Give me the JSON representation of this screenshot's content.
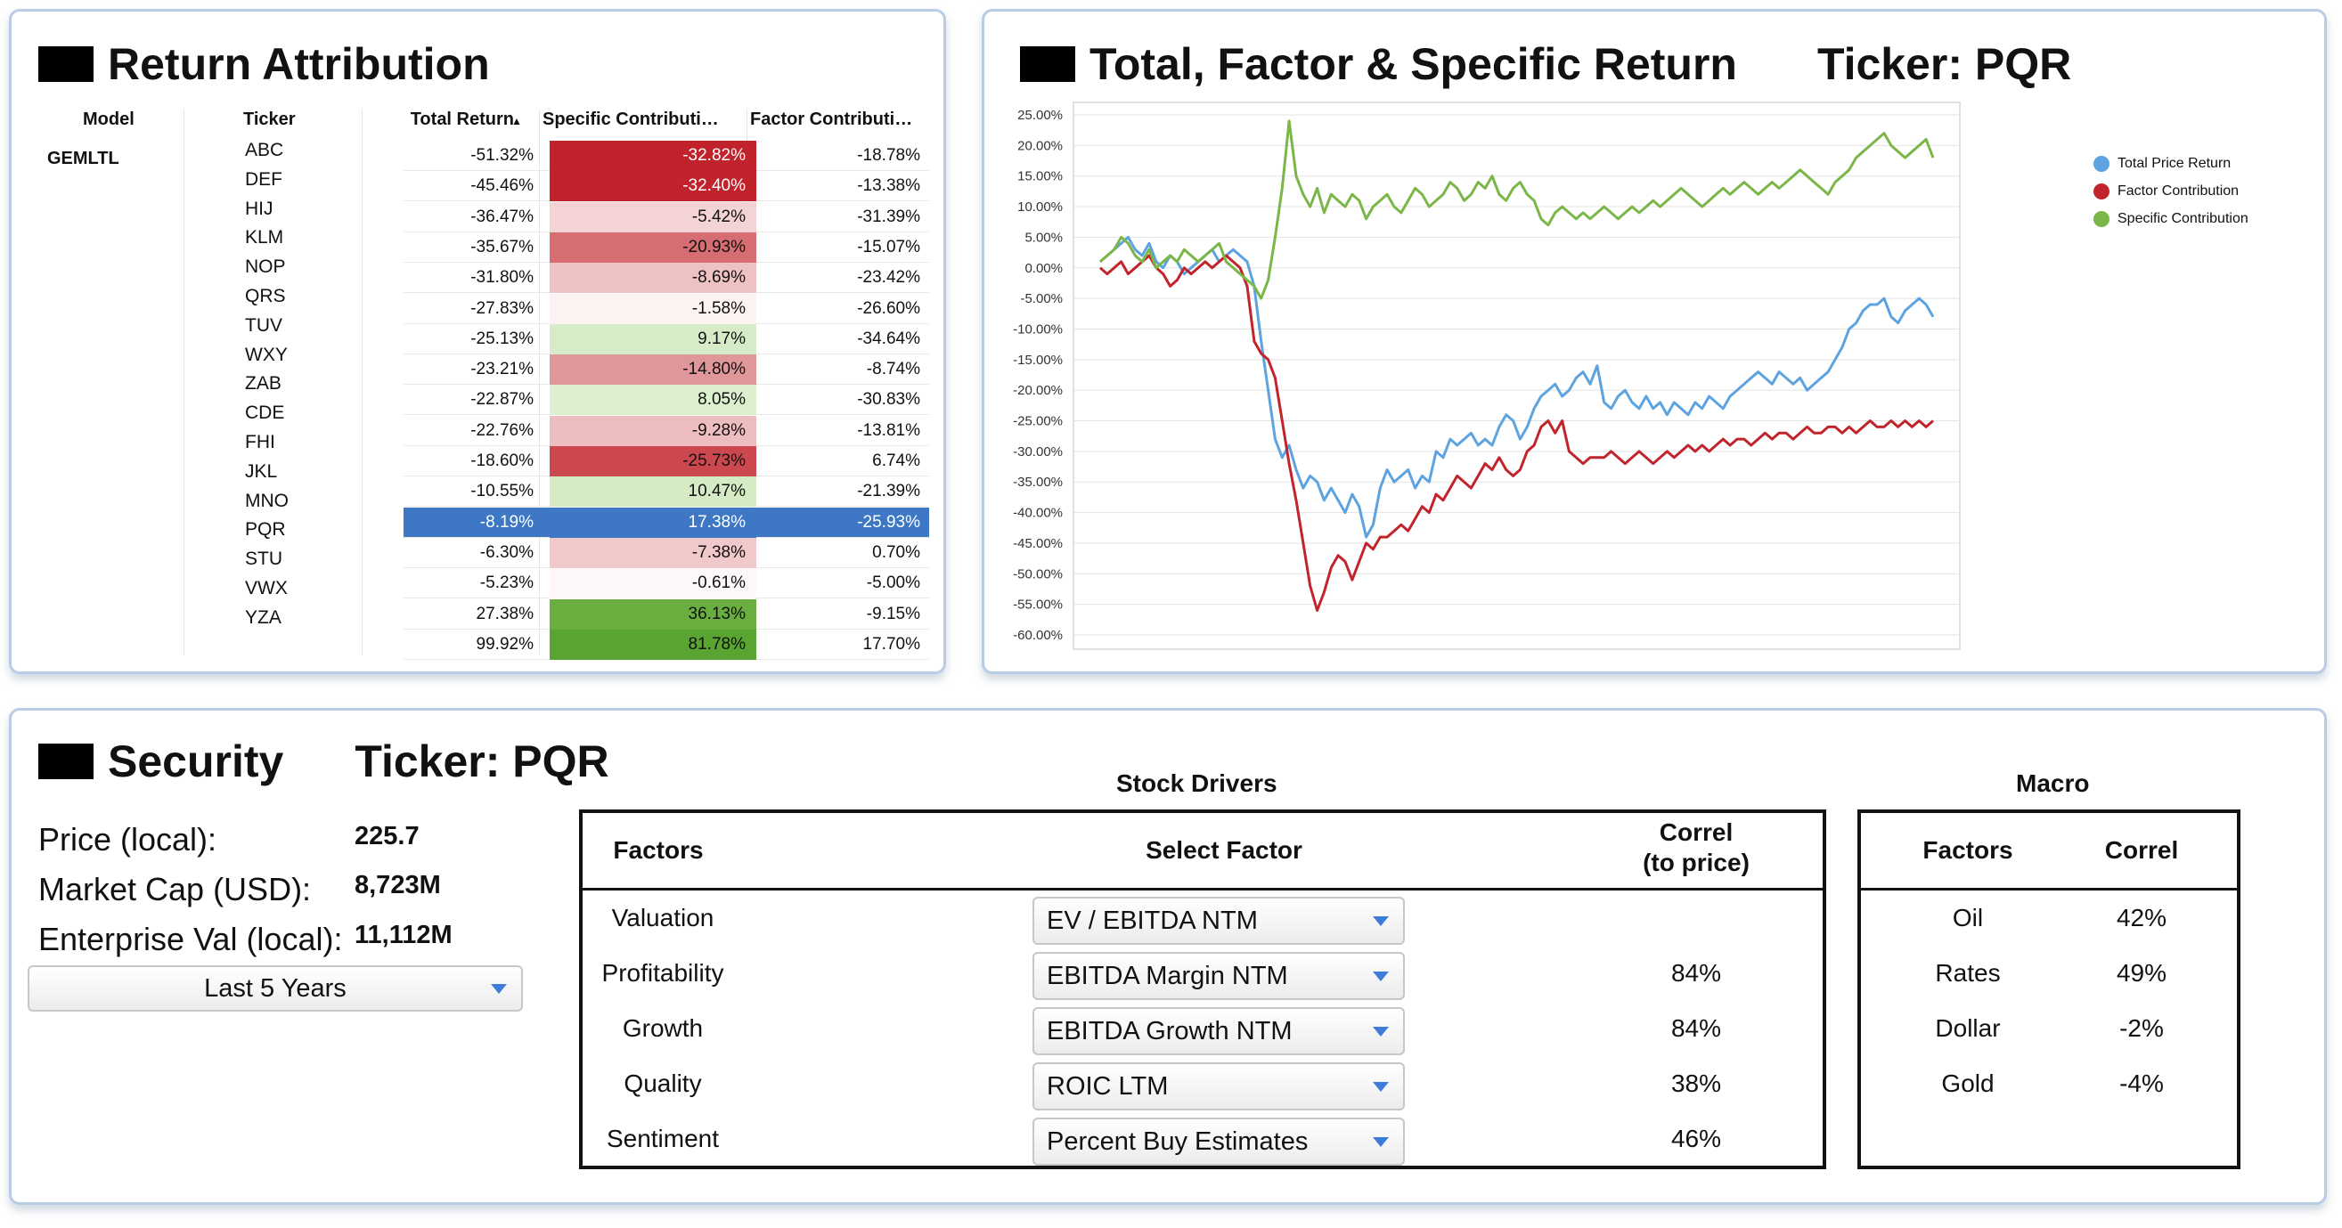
{
  "attribution": {
    "title": "Return Attribution",
    "headers": {
      "model": "Model",
      "ticker": "Ticker",
      "total": "Total Return",
      "sort_indicator": "▲",
      "specific": "Specific Contributi…",
      "factor": "Factor Contributi…"
    },
    "model": "GEMLTL",
    "tickers": [
      "ABC",
      "DEF",
      "HIJ",
      "KLM",
      "NOP",
      "QRS",
      "TUV",
      "WXY",
      "ZAB",
      "CDE",
      "FHI",
      "JKL",
      "MNO",
      "PQR",
      "STU",
      "VWX",
      "YZA"
    ],
    "rows": [
      {
        "total": "-51.32%",
        "specific": "-32.82%",
        "factor": "-18.78%",
        "color": "#c0232c",
        "text": "#ffffff"
      },
      {
        "total": "-45.46%",
        "specific": "-32.40%",
        "factor": "-13.38%",
        "color": "#c0232c",
        "text": "#ffffff"
      },
      {
        "total": "-36.47%",
        "specific": "-5.42%",
        "factor": "-31.39%",
        "color": "#f3d3d4",
        "text": "#111111"
      },
      {
        "total": "-35.67%",
        "specific": "-20.93%",
        "factor": "-15.07%",
        "color": "#d56d72",
        "text": "#111111"
      },
      {
        "total": "-31.80%",
        "specific": "-8.69%",
        "factor": "-23.42%",
        "color": "#eec1c3",
        "text": "#111111"
      },
      {
        "total": "-27.83%",
        "specific": "-1.58%",
        "factor": "-26.60%",
        "color": "#fcf2f2",
        "text": "#111111"
      },
      {
        "total": "-25.13%",
        "specific": "9.17%",
        "factor": "-34.64%",
        "color": "#d6ecc8",
        "text": "#111111"
      },
      {
        "total": "-23.21%",
        "specific": "-14.80%",
        "factor": "-8.74%",
        "color": "#e0979a",
        "text": "#111111"
      },
      {
        "total": "-22.87%",
        "specific": "8.05%",
        "factor": "-30.83%",
        "color": "#dcefce",
        "text": "#111111"
      },
      {
        "total": "-22.76%",
        "specific": "-9.28%",
        "factor": "-13.81%",
        "color": "#eebdbf",
        "text": "#111111"
      },
      {
        "total": "-18.60%",
        "specific": "-25.73%",
        "factor": "6.74%",
        "color": "#cb484e",
        "text": "#111111"
      },
      {
        "total": "-10.55%",
        "specific": "10.47%",
        "factor": "-21.39%",
        "color": "#d4ebc5",
        "text": "#111111"
      },
      {
        "total": "-8.19%",
        "specific": "17.38%",
        "factor": "-25.93%",
        "color": "#3e78c4",
        "text": "#ffffff",
        "selected": true
      },
      {
        "total": "-6.30%",
        "specific": "-7.38%",
        "factor": "0.70%",
        "color": "#f1c9cb",
        "text": "#111111"
      },
      {
        "total": "-5.23%",
        "specific": "-0.61%",
        "factor": "-5.00%",
        "color": "#fdf7f7",
        "text": "#111111"
      },
      {
        "total": "27.38%",
        "specific": "36.13%",
        "factor": "-9.15%",
        "color": "#6aae3f",
        "text": "#111111"
      },
      {
        "total": "99.92%",
        "specific": "81.78%",
        "factor": "17.70%",
        "color": "#5aa431",
        "text": "#111111"
      }
    ]
  },
  "chart_panel": {
    "title": "Total, Factor & Specific Return",
    "ticker_label": "Ticker: PQR"
  },
  "chart_data": {
    "type": "line",
    "title": "Total, Factor & Specific Return",
    "ylim": [
      -60,
      25
    ],
    "yticks": [
      "25.00%",
      "20.00%",
      "15.00%",
      "10.00%",
      "5.00%",
      "0.00%",
      "-5.00%",
      "-10.00%",
      "-15.00%",
      "-20.00%",
      "-25.00%",
      "-30.00%",
      "-35.00%",
      "-40.00%",
      "-45.00%",
      "-50.00%",
      "-55.00%",
      "-60.00%"
    ],
    "grid": true,
    "legend_position": "right",
    "x_count": 120,
    "series": [
      {
        "name": "Total Price Return",
        "color": "#5da3e0",
        "values": [
          1,
          2,
          3,
          4,
          5,
          3,
          2,
          4,
          1,
          0,
          2,
          1,
          -1,
          0,
          1,
          2,
          3,
          1,
          2,
          3,
          2,
          1,
          -3,
          -12,
          -20,
          -28,
          -31,
          -29,
          -33,
          -36,
          -34,
          -35,
          -38,
          -36,
          -38,
          -40,
          -37,
          -39,
          -44,
          -42,
          -36,
          -33,
          -35,
          -34,
          -33,
          -36,
          -34,
          -35,
          -30,
          -31,
          -28,
          -29,
          -28,
          -27,
          -29,
          -28,
          -29,
          -26,
          -24,
          -25,
          -28,
          -26,
          -23,
          -21,
          -20,
          -19,
          -21,
          -20,
          -18,
          -17,
          -19,
          -16,
          -22,
          -23,
          -21,
          -20,
          -22,
          -23,
          -21,
          -23,
          -22,
          -24,
          -22,
          -23,
          -24,
          -22,
          -23,
          -21,
          -22,
          -23,
          -21,
          -20,
          -19,
          -18,
          -17,
          -18,
          -19,
          -17,
          -18,
          -19,
          -18,
          -20,
          -19,
          -18,
          -17,
          -15,
          -13,
          -10,
          -9,
          -7,
          -6,
          -6,
          -5,
          -8,
          -9,
          -7,
          -6,
          -5,
          -6,
          -8
        ]
      },
      {
        "name": "Factor Contribution",
        "color": "#c1242b",
        "values": [
          0,
          -1,
          0,
          1,
          -1,
          0,
          1,
          2,
          0,
          -1,
          -3,
          -2,
          0,
          -1,
          0,
          1,
          0,
          1,
          2,
          1,
          0,
          -3,
          -12,
          -14,
          -15,
          -18,
          -25,
          -32,
          -38,
          -45,
          -52,
          -56,
          -53,
          -49,
          -47,
          -48,
          -51,
          -48,
          -45,
          -46,
          -44,
          -44,
          -43,
          -42,
          -43,
          -41,
          -39,
          -40,
          -37,
          -38,
          -36,
          -34,
          -35,
          -36,
          -34,
          -32,
          -33,
          -31,
          -33,
          -34,
          -33,
          -30,
          -29,
          -26,
          -25,
          -27,
          -25,
          -30,
          -31,
          -32,
          -31,
          -31,
          -31,
          -30,
          -31,
          -32,
          -31,
          -30,
          -31,
          -32,
          -31,
          -30,
          -31,
          -30,
          -29,
          -30,
          -29,
          -30,
          -29,
          -28,
          -29,
          -28,
          -28,
          -29,
          -28,
          -27,
          -28,
          -27,
          -27,
          -28,
          -27,
          -26,
          -27,
          -27,
          -26,
          -26,
          -27,
          -26,
          -27,
          -26,
          -25,
          -26,
          -26,
          -25,
          -26,
          -25,
          -26,
          -25,
          -26,
          -25
        ]
      },
      {
        "name": "Specific Contribution",
        "color": "#7ab648",
        "values": [
          1,
          2,
          3,
          5,
          4,
          2,
          1,
          3,
          0,
          1,
          2,
          1,
          3,
          2,
          1,
          2,
          3,
          4,
          1,
          0,
          -1,
          -2,
          -3,
          -5,
          -2,
          5,
          13,
          24,
          15,
          12,
          10,
          13,
          9,
          12,
          11,
          10,
          12,
          11,
          8,
          10,
          11,
          12,
          10,
          9,
          11,
          13,
          12,
          10,
          11,
          12,
          14,
          13,
          11,
          12,
          14,
          13,
          15,
          12,
          11,
          13,
          14,
          12,
          11,
          8,
          7,
          9,
          10,
          9,
          8,
          9,
          8,
          9,
          10,
          9,
          8,
          9,
          10,
          9,
          10,
          11,
          10,
          11,
          12,
          13,
          12,
          11,
          10,
          11,
          12,
          13,
          12,
          13,
          14,
          13,
          12,
          13,
          14,
          13,
          14,
          15,
          16,
          15,
          14,
          13,
          12,
          14,
          15,
          16,
          18,
          19,
          20,
          21,
          22,
          20,
          19,
          18,
          19,
          20,
          21,
          18
        ]
      }
    ]
  },
  "security": {
    "title": "Security",
    "ticker_label": "Ticker: PQR",
    "price_label": "Price (local):",
    "price_value": "225.7",
    "mcap_label": "Market Cap (USD):",
    "mcap_value": "8,723M",
    "ev_label": "Enterprise Val (local):",
    "ev_value": "11,112M",
    "period": "Last 5 Years",
    "drivers": {
      "title": "Stock Drivers",
      "h_factors": "Factors",
      "h_select": "Select Factor",
      "h_correl_1": "Correl",
      "h_correl_2": "(to price)",
      "rows": [
        {
          "factor": "Valuation",
          "select": "EV / EBITDA NTM",
          "correl": ""
        },
        {
          "factor": "Profitability",
          "select": "EBITDA Margin NTM",
          "correl": "84%"
        },
        {
          "factor": "Growth",
          "select": "EBITDA Growth NTM",
          "correl": "84%"
        },
        {
          "factor": "Quality",
          "select": "ROIC LTM",
          "correl": "38%"
        },
        {
          "factor": "Sentiment",
          "select": "Percent Buy Estimates",
          "correl": "46%"
        }
      ]
    },
    "macro": {
      "title": "Macro",
      "h_factors": "Factors",
      "h_correl": "Correl",
      "rows": [
        {
          "factor": "Oil",
          "correl": "42%"
        },
        {
          "factor": "Rates",
          "correl": "49%"
        },
        {
          "factor": "Dollar",
          "correl": "-2%"
        },
        {
          "factor": "Gold",
          "correl": "-4%"
        }
      ]
    }
  }
}
